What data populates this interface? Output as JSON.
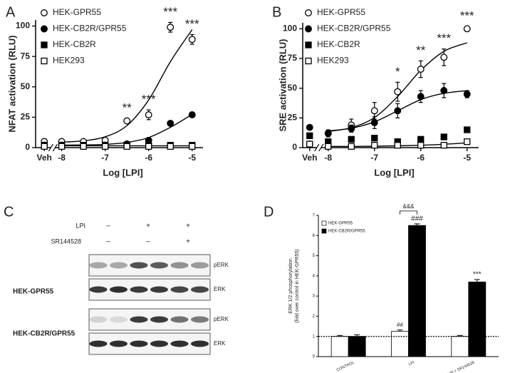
{
  "chart_data": [
    {
      "type": "scatter",
      "panel_label": "A",
      "x_label": "Log [LPI]",
      "y_label": "NFAT activation (RLU)",
      "x": [
        -8.4,
        -8,
        -7.5,
        -7,
        -6.5,
        -6,
        -5.5,
        -5
      ],
      "xlim": [
        -8.6,
        -4.75
      ],
      "xticks": [
        {
          "value": -8.4,
          "label": "Veh"
        },
        -8,
        -7,
        -6,
        -5
      ],
      "ylim": [
        0,
        105
      ],
      "yticks": [
        0,
        25,
        50,
        75,
        100
      ],
      "curve_x": [
        -8,
        -7.5,
        -7,
        -6.5,
        -6,
        -5.5,
        -5
      ],
      "series": [
        {
          "name": "HEK-GPR55",
          "marker": "open-circle",
          "color": "#000000",
          "values": [
            5,
            5,
            5,
            6,
            22,
            27,
            99,
            89
          ],
          "errors": [
            1,
            1,
            1,
            1,
            2,
            4,
            4,
            4
          ],
          "curve": [
            4.5,
            5.6,
            8.9,
            18.1,
            39.2,
            70.7,
            97.1
          ]
        },
        {
          "name": "HEK-CB2R/GPR55",
          "marker": "filled-circle",
          "color": "#000000",
          "values": [
            2,
            2,
            1,
            2,
            3,
            6,
            20,
            27
          ],
          "errors": [
            1,
            1,
            1,
            1,
            1,
            1,
            1,
            2
          ],
          "curve": [
            2.1,
            2.2,
            2.7,
            4.3,
            8.3,
            16.7,
            27.3
          ]
        },
        {
          "name": "HEK-CB2R",
          "marker": "filled-square",
          "color": "#000000",
          "values": [
            2,
            2,
            2,
            2,
            2,
            2,
            2,
            2
          ],
          "curve": [
            1.5,
            1.5,
            1.5,
            1.5,
            1.5,
            1.5,
            1.5
          ]
        },
        {
          "name": "HEK293",
          "marker": "open-square",
          "color": "#000000",
          "values": [
            1,
            1,
            1,
            1,
            1,
            1,
            1,
            1
          ]
        }
      ],
      "significance": [
        null,
        null,
        null,
        null,
        "**",
        "***",
        "***",
        "***"
      ]
    },
    {
      "type": "scatter",
      "panel_label": "B",
      "x_label": "Log [LPI]",
      "y_label": "SRE activation (RLU)",
      "x": [
        -8.4,
        -8,
        -7.5,
        -7,
        -6.5,
        -6,
        -5.5,
        -5
      ],
      "xlim": [
        -8.55,
        -4.75
      ],
      "xticks": [
        {
          "value": -8.4,
          "label": "Veh"
        },
        -8,
        -7,
        -6,
        -5
      ],
      "ylim": [
        0,
        105
      ],
      "yticks": [
        0,
        25,
        50,
        75,
        100
      ],
      "curve_x": [
        -8,
        -7.5,
        -7,
        -6.5,
        -6,
        -5.5,
        -5
      ],
      "series": [
        {
          "name": "HEK-GPR55",
          "marker": "open-circle",
          "color": "#000000",
          "values": [
            3,
            12,
            19,
            31,
            47,
            66,
            76,
            100
          ],
          "errors": [
            1,
            3,
            5,
            7,
            8,
            7,
            7,
            2
          ],
          "curve": [
            13.6,
            16.8,
            25.3,
            43,
            65,
            81,
            88.2
          ]
        },
        {
          "name": "HEK-CB2R/GPR55",
          "marker": "filled-circle",
          "color": "#000000",
          "values": [
            17,
            12,
            16,
            21,
            31,
            43,
            48,
            45
          ],
          "errors": [
            1,
            2,
            3,
            5,
            6,
            5,
            6,
            3
          ],
          "curve": [
            14.1,
            16.3,
            21.7,
            31,
            40.4,
            45.7,
            47.9
          ]
        },
        {
          "name": "HEK-CB2R",
          "marker": "filled-square",
          "color": "#000000",
          "values": [
            10,
            5,
            7,
            8,
            5,
            7,
            9,
            15
          ]
        },
        {
          "name": "HEK293",
          "marker": "open-square",
          "color": "#000000",
          "values": [
            3,
            1,
            1,
            2,
            2,
            2,
            2,
            5
          ],
          "curve": [
            1,
            1,
            1.2,
            1.5,
            2,
            2.8,
            4
          ]
        }
      ],
      "significance": [
        null,
        null,
        null,
        null,
        "*",
        "**",
        "***",
        "***"
      ]
    },
    {
      "type": "bar",
      "panel_label": "D",
      "y_label": [
        "ERK 1/2 phosphorylation",
        "(fold over control in HEK-GPR55)"
      ],
      "categories": [
        "CONTROL",
        "LPI",
        "LPI + SR144528"
      ],
      "ylim": [
        0,
        7
      ],
      "yticks": [
        0,
        1,
        2,
        3,
        4,
        5,
        6,
        7
      ],
      "series": [
        {
          "name": "HEK-GPR55",
          "color": "#ffffff",
          "values": [
            1.0,
            1.25,
            1.0
          ],
          "errors": [
            0.05,
            0.07,
            0.05
          ],
          "significance": [
            null,
            "##",
            null
          ]
        },
        {
          "name": "HEK-CB2R/GPR55",
          "color": "#000000",
          "values": [
            1.0,
            6.5,
            3.7
          ],
          "errors": [
            0.08,
            0.08,
            0.12
          ],
          "significance": [
            null,
            "###",
            "***"
          ]
        }
      ],
      "reference_line": 1,
      "bracket_label": "&&&"
    }
  ],
  "blot": {
    "panel_label": "C",
    "treatments": [
      {
        "label": "LPI",
        "signs": [
          "–",
          "+",
          "+"
        ]
      },
      {
        "label": "SR144528",
        "signs": [
          "–",
          "–",
          "+"
        ]
      }
    ],
    "cell_lines": [
      {
        "name": "HEK-GPR55",
        "bands": [
          "pERK",
          "ERK"
        ]
      },
      {
        "name": "HEK-CB2R/GPR55",
        "bands": [
          "pERK",
          "ERK"
        ]
      }
    ]
  }
}
